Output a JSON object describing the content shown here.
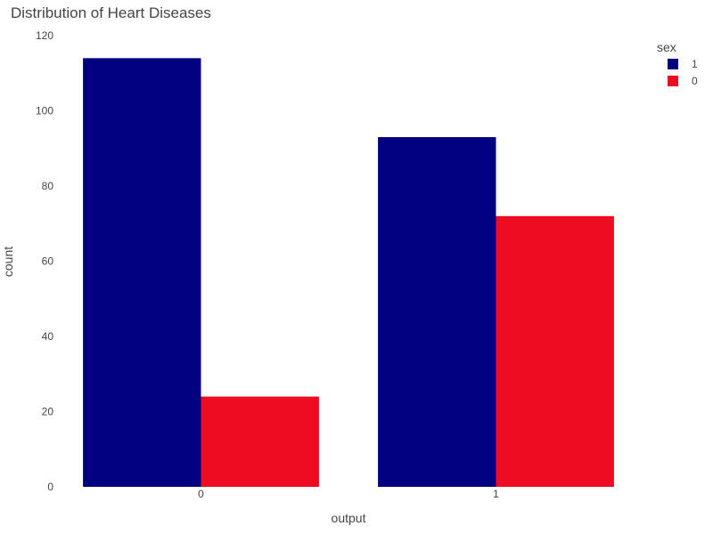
{
  "chart_data": {
    "type": "bar",
    "title": "Distribution of Heart Diseases",
    "xlabel": "output",
    "ylabel": "count",
    "categories": [
      "0",
      "1"
    ],
    "series": [
      {
        "name": "1",
        "values": [
          114,
          93
        ],
        "color": "#000080"
      },
      {
        "name": "0",
        "values": [
          24,
          72
        ],
        "color": "#EE0C20"
      }
    ],
    "ylim": [
      0,
      120
    ],
    "yticks": [
      0,
      20,
      40,
      60,
      80,
      100,
      120
    ],
    "grid": false,
    "legend": {
      "title": "sex",
      "position": "top-right"
    }
  }
}
